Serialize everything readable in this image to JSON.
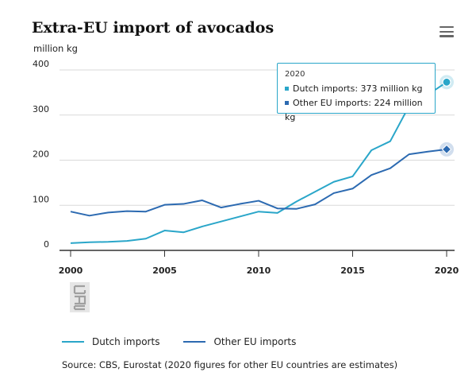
{
  "header": {
    "title": "Extra-EU import of avocados",
    "unit": "million kg",
    "menu_icon": "hamburger-menu-icon"
  },
  "tooltip": {
    "year": "2020",
    "dutch": "Dutch imports: 373 million kg",
    "other": "Other EU imports: 224 million kg"
  },
  "logo": {
    "icon": "cbs-logo-icon"
  },
  "legend": {
    "dutch": "Dutch imports",
    "other": "Other EU imports"
  },
  "source": "Source: CBS, Eurostat (2020 figures for other EU countries are estimates)",
  "colors": {
    "dutch": "#2aa6c9",
    "other": "#2c6ab1",
    "grid": "#d9d9d9",
    "axis": "#333333"
  },
  "chart_data": {
    "type": "line",
    "title": "Extra-EU import of avocados",
    "xlabel": "",
    "ylabel": "million kg",
    "x": [
      2000,
      2001,
      2002,
      2003,
      2004,
      2005,
      2006,
      2007,
      2008,
      2009,
      2010,
      2011,
      2012,
      2013,
      2014,
      2015,
      2016,
      2017,
      2018,
      2019,
      2020
    ],
    "xlim": [
      2000,
      2020
    ],
    "ylim": [
      0,
      400
    ],
    "xticks": [
      "2000",
      "2005",
      "2010",
      "2015",
      "2020"
    ],
    "yticks": [
      "0",
      "100",
      "200",
      "300",
      "400"
    ],
    "grid": true,
    "legend_position": "bottom",
    "series": [
      {
        "name": "Dutch imports",
        "values": [
          16,
          18,
          19,
          21,
          26,
          44,
          40,
          53,
          64,
          75,
          86,
          83,
          108,
          130,
          152,
          164,
          222,
          242,
          320,
          345,
          373
        ]
      },
      {
        "name": "Other EU imports",
        "values": [
          86,
          77,
          84,
          87,
          86,
          101,
          103,
          111,
          95,
          103,
          110,
          93,
          92,
          102,
          127,
          137,
          167,
          182,
          213,
          219,
          224
        ]
      }
    ]
  }
}
